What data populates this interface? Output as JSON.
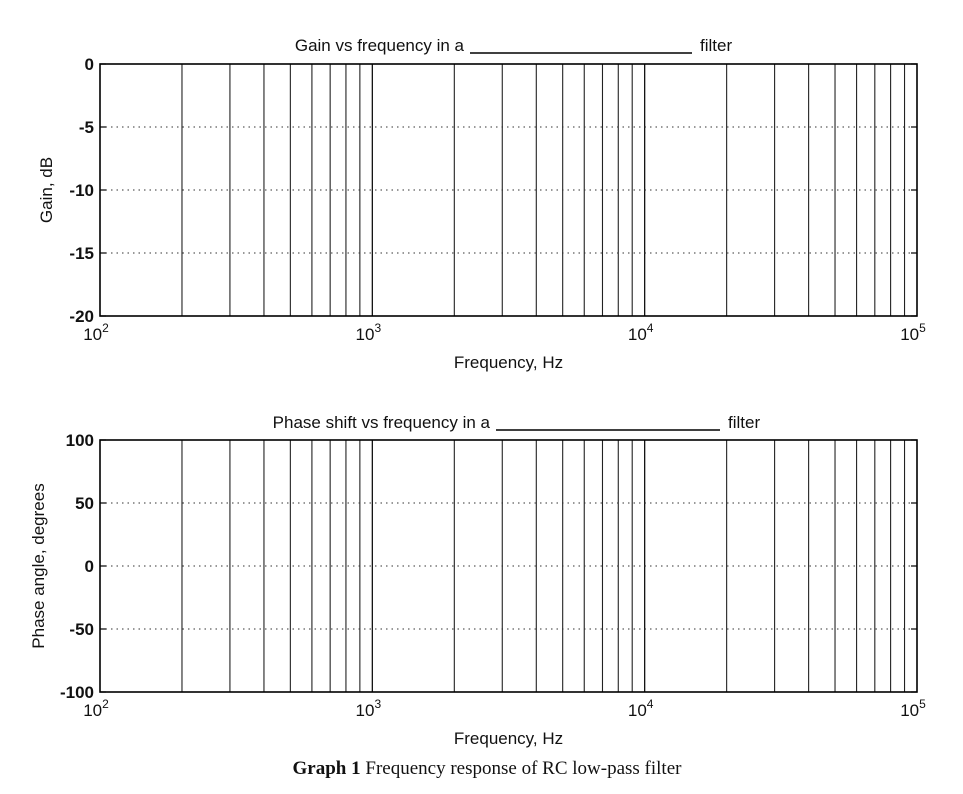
{
  "chart_data": [
    {
      "type": "line",
      "title": "Gain vs frequency in a",
      "title_suffix": "filter",
      "xlabel": "Frequency, Hz",
      "ylabel": "Gain, dB",
      "xscale": "log",
      "xlim": [
        100,
        100000
      ],
      "ylim": [
        -20,
        0
      ],
      "xticks": [
        {
          "base": "10",
          "exp": "2"
        },
        {
          "base": "10",
          "exp": "3"
        },
        {
          "base": "10",
          "exp": "4"
        },
        {
          "base": "10",
          "exp": "5"
        }
      ],
      "yticks": [
        "0",
        "-5",
        "-10",
        "-15",
        "-20"
      ],
      "ytick_values": [
        0,
        -5,
        -10,
        -15,
        -20
      ],
      "grid": true,
      "series": []
    },
    {
      "type": "line",
      "title": "Phase shift vs frequency in a",
      "title_suffix": "filter",
      "xlabel": "Frequency, Hz",
      "ylabel": "Phase angle, degrees",
      "xscale": "log",
      "xlim": [
        100,
        100000
      ],
      "ylim": [
        -100,
        100
      ],
      "xticks": [
        {
          "base": "10",
          "exp": "2"
        },
        {
          "base": "10",
          "exp": "3"
        },
        {
          "base": "10",
          "exp": "4"
        },
        {
          "base": "10",
          "exp": "5"
        }
      ],
      "yticks": [
        "100",
        "50",
        "0",
        "-50",
        "-100"
      ],
      "ytick_values": [
        100,
        50,
        0,
        -50,
        -100
      ],
      "grid": true,
      "series": []
    }
  ],
  "caption": {
    "bold": "Graph 1",
    "text": " Frequency response of RC low-pass filter"
  }
}
